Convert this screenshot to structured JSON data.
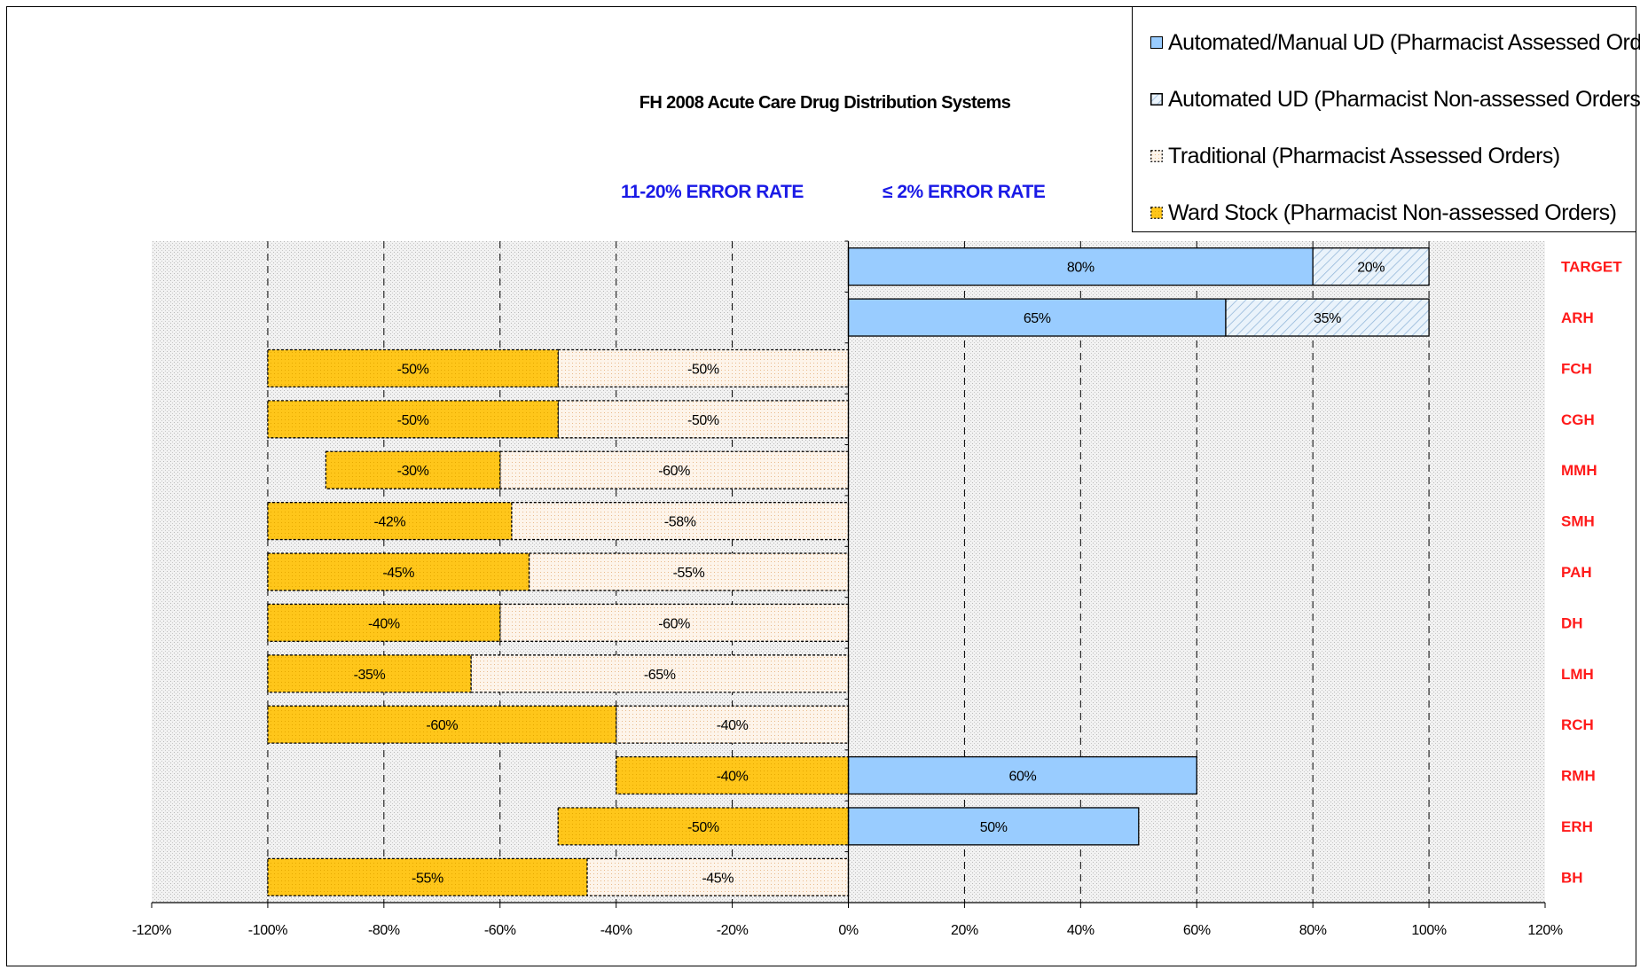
{
  "chart_data": {
    "type": "bar",
    "orientation": "horizontal",
    "stacked": true,
    "title": "FH 2008 Acute Care Drug Distribution Systems",
    "annotations": [
      "11-20% ERROR RATE",
      "≤ 2% ERROR RATE"
    ],
    "categories": [
      "TARGET",
      "ARH",
      "FCH",
      "CGH",
      "MMH",
      "SMH",
      "PAH",
      "DH",
      "LMH",
      "RCH",
      "RMH",
      "ERH",
      "BH"
    ],
    "x_ticks": [
      "-120%",
      "-100%",
      "-80%",
      "-60%",
      "-40%",
      "-20%",
      "0%",
      "20%",
      "40%",
      "60%",
      "80%",
      "100%",
      "120%"
    ],
    "xlim": [
      -120,
      120
    ],
    "grid": "vertical dashed",
    "legend_position": "top-right",
    "series": [
      {
        "name": "Automated/Manual UD (Pharmacist Assessed Orders)",
        "color": "#99ccff",
        "values": [
          80,
          65,
          0,
          0,
          0,
          0,
          0,
          0,
          0,
          0,
          60,
          50,
          0
        ],
        "labels": [
          "80%",
          "65%",
          "",
          "",
          "",
          "",
          "",
          "",
          "",
          "",
          "60%",
          "50%",
          ""
        ]
      },
      {
        "name": "Automated UD (Pharmacist Non-assessed Orders)",
        "color": "#cfe4f6",
        "values": [
          20,
          35,
          0,
          0,
          0,
          0,
          0,
          0,
          0,
          0,
          0,
          0,
          0
        ],
        "labels": [
          "20%",
          "35%",
          "",
          "",
          "",
          "",
          "",
          "",
          "",
          "",
          "",
          "",
          ""
        ]
      },
      {
        "name": "Traditional (Pharmacist Assessed Orders)",
        "color": "#fdf2e6",
        "values": [
          0,
          0,
          -50,
          -50,
          -60,
          -58,
          -55,
          -60,
          -65,
          -40,
          0,
          0,
          -45
        ],
        "labels": [
          "",
          "",
          "-50%",
          "-50%",
          "-60%",
          "-58%",
          "-55%",
          "-60%",
          "-65%",
          "-40%",
          "",
          "",
          "-45%"
        ]
      },
      {
        "name": "Ward Stock (Pharmacist Non-assessed Orders)",
        "color": "#ffc61a",
        "values": [
          0,
          0,
          -50,
          -50,
          -30,
          -42,
          -45,
          -40,
          -35,
          -60,
          -40,
          -50,
          -55
        ],
        "labels": [
          "",
          "",
          "-50%",
          "-50%",
          "-30%",
          "-42%",
          "-45%",
          "-40%",
          "-35%",
          "-60%",
          "-40%",
          "-50%",
          "-55%"
        ]
      }
    ]
  }
}
